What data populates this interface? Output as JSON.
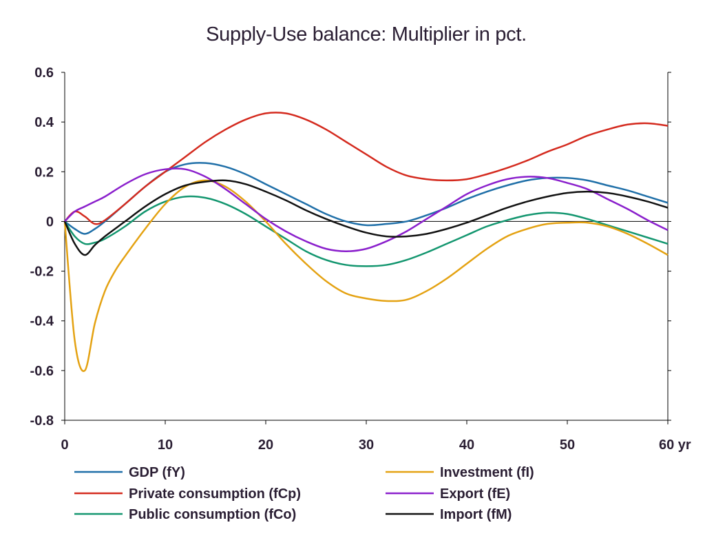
{
  "chart_data": {
    "type": "line",
    "title": "Supply-Use balance: Multiplier in pct.",
    "xlabel": "",
    "ylabel": "",
    "xlim": [
      0,
      60
    ],
    "ylim": [
      -0.8,
      0.6
    ],
    "x_ticks": [
      0,
      10,
      20,
      30,
      40,
      50,
      60
    ],
    "x_tick_labels": [
      "0",
      "10",
      "20",
      "30",
      "40",
      "50",
      "60 yr"
    ],
    "y_ticks": [
      -0.8,
      -0.6,
      -0.4,
      -0.2,
      0,
      0.2,
      0.4,
      0.6
    ],
    "y_tick_labels": [
      "-0.8",
      "-0.6",
      "-0.4",
      "-0.2",
      "0",
      "0.2",
      "0.4",
      "0.6"
    ],
    "grid": false,
    "zero_line": true,
    "legend_position": "bottom",
    "series": [
      {
        "name": "GDP (fY)",
        "color": "#1f6fa8",
        "x": [
          0,
          1,
          2,
          3,
          4,
          6,
          8,
          10,
          12,
          14,
          16,
          18,
          20,
          22,
          24,
          26,
          28,
          30,
          32,
          34,
          36,
          38,
          40,
          42,
          44,
          46,
          48,
          50,
          52,
          54,
          56,
          58,
          60
        ],
        "y": [
          0,
          -0.03,
          -0.05,
          -0.03,
          0.0,
          0.07,
          0.14,
          0.2,
          0.23,
          0.235,
          0.22,
          0.19,
          0.15,
          0.11,
          0.07,
          0.03,
          0.0,
          -0.015,
          -0.01,
          0.0,
          0.025,
          0.055,
          0.09,
          0.12,
          0.145,
          0.165,
          0.175,
          0.175,
          0.165,
          0.145,
          0.125,
          0.1,
          0.075
        ]
      },
      {
        "name": "Private consumption (fCp)",
        "color": "#d42a1e",
        "x": [
          0,
          1,
          2,
          3,
          4,
          6,
          8,
          10,
          12,
          14,
          16,
          18,
          20,
          22,
          24,
          26,
          28,
          30,
          32,
          34,
          36,
          38,
          40,
          42,
          44,
          46,
          48,
          50,
          52,
          54,
          56,
          58,
          60
        ],
        "y": [
          0,
          0.04,
          0.02,
          -0.01,
          0.005,
          0.07,
          0.14,
          0.2,
          0.26,
          0.32,
          0.37,
          0.41,
          0.435,
          0.435,
          0.41,
          0.37,
          0.32,
          0.27,
          0.22,
          0.185,
          0.17,
          0.165,
          0.17,
          0.19,
          0.215,
          0.245,
          0.28,
          0.31,
          0.345,
          0.37,
          0.39,
          0.395,
          0.385
        ]
      },
      {
        "name": "Public consumption (fCo)",
        "color": "#13966f",
        "x": [
          0,
          1,
          2,
          3,
          4,
          6,
          8,
          10,
          12,
          14,
          16,
          18,
          20,
          22,
          24,
          26,
          28,
          30,
          32,
          34,
          36,
          38,
          40,
          42,
          44,
          46,
          48,
          50,
          52,
          54,
          56,
          58,
          60
        ],
        "y": [
          0,
          -0.06,
          -0.09,
          -0.085,
          -0.07,
          -0.02,
          0.04,
          0.08,
          0.1,
          0.095,
          0.07,
          0.03,
          -0.02,
          -0.07,
          -0.12,
          -0.155,
          -0.175,
          -0.18,
          -0.175,
          -0.155,
          -0.125,
          -0.09,
          -0.055,
          -0.02,
          0.005,
          0.025,
          0.035,
          0.03,
          0.01,
          -0.015,
          -0.04,
          -0.065,
          -0.09
        ]
      },
      {
        "name": "Investment (fI)",
        "color": "#e4a212",
        "x": [
          0,
          1,
          2,
          3,
          4,
          5,
          6,
          8,
          10,
          12,
          14,
          16,
          18,
          20,
          22,
          24,
          26,
          28,
          30,
          32,
          34,
          36,
          38,
          40,
          42,
          44,
          46,
          48,
          50,
          52,
          54,
          56,
          58,
          60
        ],
        "y": [
          0,
          -0.48,
          -0.6,
          -0.41,
          -0.28,
          -0.2,
          -0.14,
          -0.03,
          0.07,
          0.14,
          0.165,
          0.14,
          0.08,
          0.0,
          -0.09,
          -0.17,
          -0.24,
          -0.29,
          -0.31,
          -0.32,
          -0.315,
          -0.28,
          -0.23,
          -0.17,
          -0.11,
          -0.06,
          -0.03,
          -0.01,
          -0.005,
          -0.005,
          -0.02,
          -0.05,
          -0.09,
          -0.135
        ]
      },
      {
        "name": "Export (fE)",
        "color": "#8a1fcc",
        "x": [
          0,
          1,
          2,
          3,
          4,
          6,
          8,
          10,
          12,
          14,
          16,
          18,
          20,
          22,
          24,
          26,
          28,
          30,
          32,
          34,
          36,
          38,
          40,
          42,
          44,
          46,
          48,
          50,
          52,
          54,
          56,
          58,
          60
        ],
        "y": [
          0,
          0.04,
          0.06,
          0.08,
          0.1,
          0.15,
          0.19,
          0.21,
          0.21,
          0.18,
          0.13,
          0.07,
          0.01,
          -0.04,
          -0.08,
          -0.11,
          -0.12,
          -0.11,
          -0.08,
          -0.04,
          0.01,
          0.06,
          0.11,
          0.145,
          0.17,
          0.18,
          0.175,
          0.155,
          0.13,
          0.09,
          0.05,
          0.005,
          -0.035
        ]
      },
      {
        "name": "Import (fM)",
        "color": "#111111",
        "x": [
          0,
          1,
          2,
          3,
          4,
          6,
          8,
          10,
          12,
          14,
          16,
          18,
          20,
          22,
          24,
          26,
          28,
          30,
          32,
          34,
          36,
          38,
          40,
          42,
          44,
          46,
          48,
          50,
          52,
          54,
          56,
          58,
          60
        ],
        "y": [
          0,
          -0.09,
          -0.135,
          -0.095,
          -0.06,
          0.0,
          0.06,
          0.11,
          0.145,
          0.16,
          0.165,
          0.15,
          0.12,
          0.085,
          0.045,
          0.01,
          -0.02,
          -0.045,
          -0.06,
          -0.06,
          -0.05,
          -0.03,
          -0.005,
          0.025,
          0.055,
          0.08,
          0.1,
          0.115,
          0.12,
          0.115,
          0.1,
          0.08,
          0.055
        ]
      }
    ]
  }
}
